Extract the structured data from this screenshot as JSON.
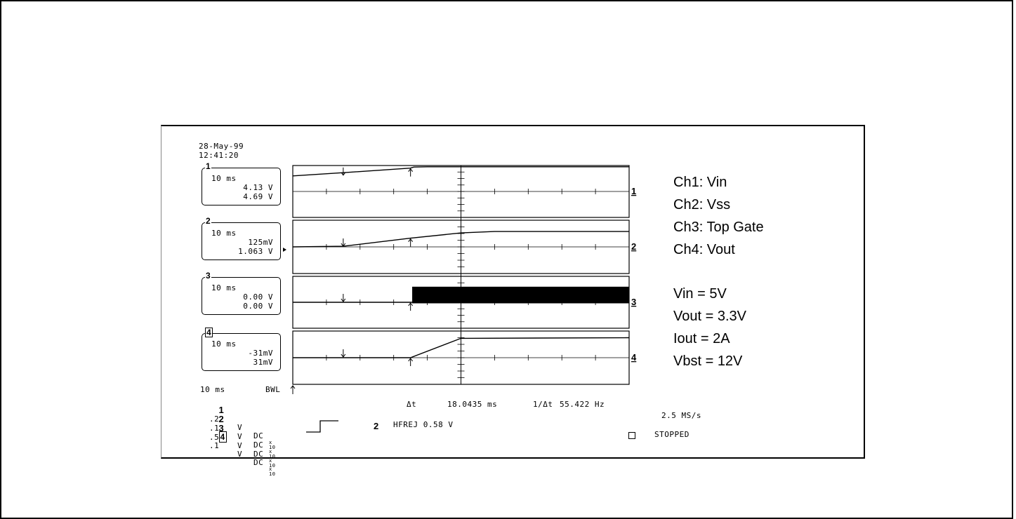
{
  "header": {
    "date": "28-May-99",
    "time": "12:41:20"
  },
  "channel_boxes": [
    {
      "num": "1",
      "timebase": "10 ms",
      "v1": "4.13 V",
      "v2": "4.69 V"
    },
    {
      "num": "2",
      "timebase": "10 ms",
      "v1": "125mV",
      "v2": "1.063 V"
    },
    {
      "num": "3",
      "timebase": "10 ms",
      "v1": "0.00 V",
      "v2": "0.00 V"
    },
    {
      "num": "4",
      "timebase": "10 ms",
      "v1": "-31mV",
      "v2": "31mV"
    }
  ],
  "bottom": {
    "timebase": "10 ms",
    "bwl": "BWL",
    "channel_settings": [
      {
        "num": "1",
        "scale": ".2",
        "unit": "V",
        "coupling": "DC",
        "probe": "x10"
      },
      {
        "num": "2",
        "scale": ".1",
        "unit": "V",
        "coupling": "DC",
        "probe": "x10"
      },
      {
        "num": "3",
        "scale": ".5",
        "unit": "V",
        "coupling": "DC",
        "probe": "x10"
      },
      {
        "num": "4",
        "scale": ".1",
        "unit": "V",
        "coupling": "DC",
        "probe": "x10"
      }
    ],
    "delta_t_label": "Δt",
    "delta_t_value": "18.0435 ms",
    "inv_delta_label": "1/Δt",
    "inv_delta_value": "55.422 Hz",
    "trigger_source": "2",
    "trigger_text": "HFREJ 0.58 V",
    "sample_rate": "2.5 MS/s",
    "status": "STOPPED"
  },
  "notes": {
    "channels": [
      "Ch1: Vin",
      "Ch2: Vss",
      "Ch3: Top Gate",
      "Ch4: Vout"
    ],
    "conditions": [
      "Vin = 5V",
      "Vout = 3.3V",
      "Iout = 2A",
      "Vbst = 12V"
    ]
  },
  "chart_data": {
    "type": "line",
    "x_unit": "divisions",
    "xlim": [
      0,
      10
    ],
    "divisions_per_trace": 4,
    "time_per_div": "10 ms",
    "cursor_a_div": 1.5,
    "cursor_b_div": 3.5,
    "series": [
      {
        "name": "1",
        "label_right": "1",
        "ground_div": 0,
        "x": [
          0,
          1.5,
          3.5,
          3.6,
          4.0,
          10
        ],
        "y": [
          1.2,
          1.45,
          1.8,
          1.88,
          1.9,
          1.9
        ]
      },
      {
        "name": "2",
        "label_right": "2",
        "ground_div": 0,
        "x": [
          0,
          1.5,
          3.5,
          5.0,
          6.0,
          10
        ],
        "y": [
          0,
          0.05,
          0.65,
          1.05,
          1.15,
          1.15
        ]
      },
      {
        "name": "3",
        "label_right": "3",
        "ground_div": 0,
        "x": [
          0,
          3.5,
          10
        ],
        "y": [
          0,
          0,
          0
        ],
        "burst_start_div": 3.55,
        "burst_range": [
          -0.08,
          1.2
        ]
      },
      {
        "name": "4",
        "label_right": "4",
        "ground_div": 0,
        "x": [
          0,
          3.5,
          5.0,
          10
        ],
        "y": [
          0,
          0,
          1.45,
          1.5
        ]
      }
    ]
  }
}
